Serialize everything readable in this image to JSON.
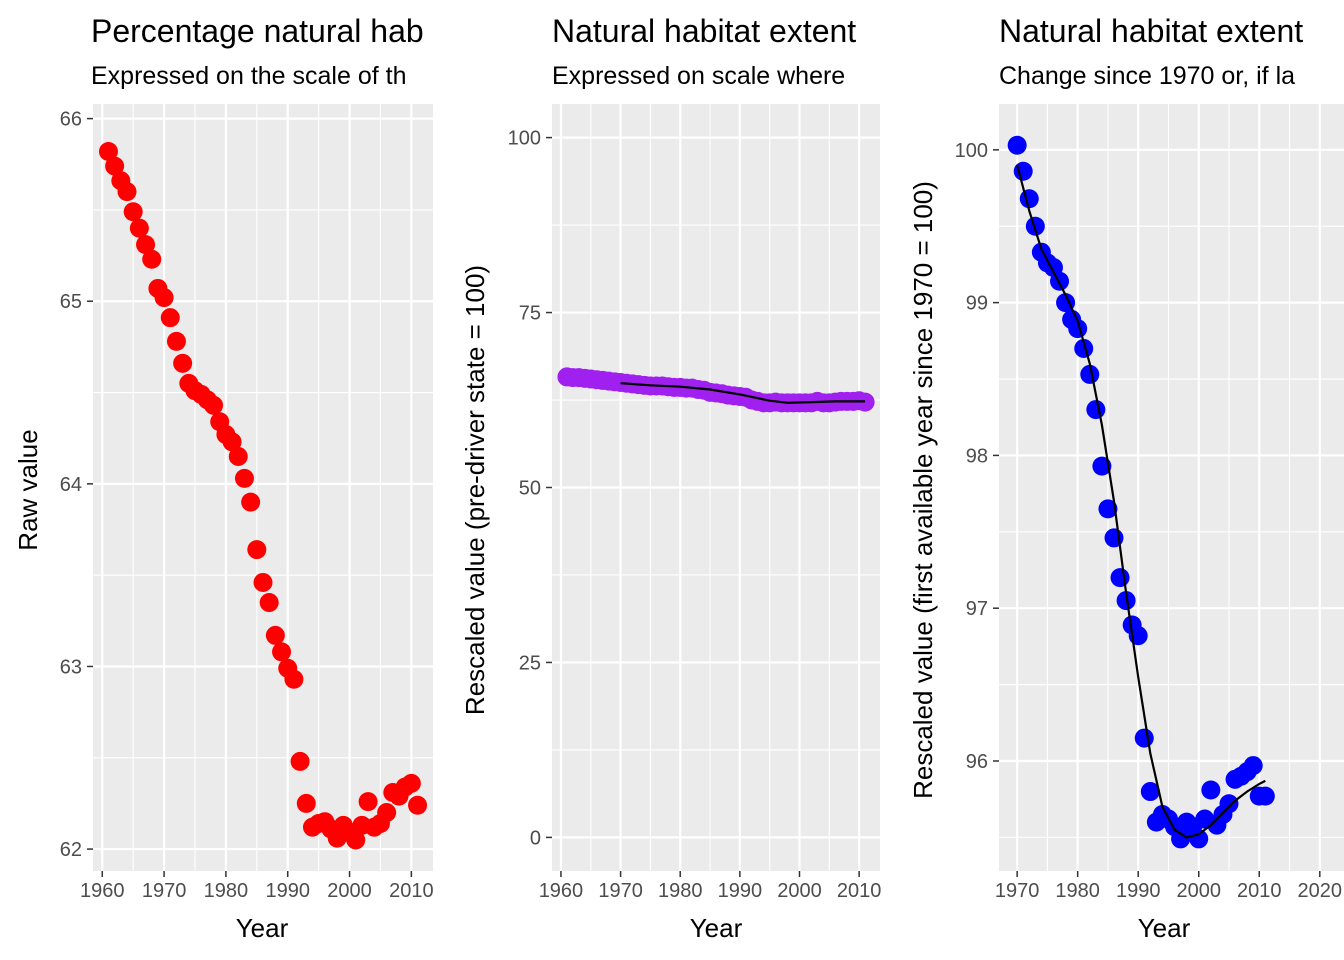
{
  "chart_data": [
    {
      "type": "scatter",
      "title": "Percentage natural hab",
      "subtitle": "Expressed on the scale of th",
      "xlabel": "Year",
      "ylabel": "Raw value",
      "xlim": [
        1958.5,
        2013.5
      ],
      "ylim": [
        61.88,
        66.08
      ],
      "x_ticks": [
        1960,
        1970,
        1980,
        1990,
        2000,
        2010
      ],
      "y_ticks": [
        62,
        63,
        64,
        65,
        66
      ],
      "grid": true,
      "point_color": "#ff0000",
      "series": [
        {
          "x": [
            1961,
            1962,
            1963,
            1964,
            1965,
            1966,
            1967,
            1968,
            1969,
            1970,
            1971,
            1972,
            1973,
            1974,
            1975,
            1976,
            1977,
            1978,
            1979,
            1980,
            1981,
            1982,
            1983,
            1984,
            1985,
            1986,
            1987,
            1988,
            1989,
            1990,
            1991,
            1992,
            1993,
            1994,
            1995,
            1996,
            1997,
            1998,
            1999,
            2000,
            2001,
            2002,
            2003,
            2004,
            2005,
            2006,
            2007,
            2008,
            2009,
            2010,
            2011
          ],
          "y": [
            65.82,
            65.74,
            65.66,
            65.6,
            65.49,
            65.4,
            65.31,
            65.23,
            65.07,
            65.02,
            64.91,
            64.78,
            64.66,
            64.55,
            64.51,
            64.49,
            64.46,
            64.43,
            64.34,
            64.27,
            64.23,
            64.15,
            64.03,
            63.9,
            63.64,
            63.46,
            63.35,
            63.17,
            63.08,
            62.99,
            62.93,
            62.48,
            62.25,
            62.12,
            62.14,
            62.15,
            62.11,
            62.06,
            62.13,
            62.09,
            62.05,
            62.13,
            62.26,
            62.12,
            62.14,
            62.2,
            62.31,
            62.29,
            62.34,
            62.36,
            62.24
          ]
        }
      ]
    },
    {
      "type": "scatter",
      "title": "Natural habitat extent",
      "subtitle": "Expressed on scale where",
      "xlabel": "Year",
      "ylabel": "Rescaled value (pre-driver state = 100)",
      "xlim": [
        1958.5,
        2013.5
      ],
      "ylim": [
        -4.8,
        104.8
      ],
      "x_ticks": [
        1960,
        1970,
        1980,
        1990,
        2000,
        2010
      ],
      "y_ticks": [
        0,
        25,
        50,
        75,
        100
      ],
      "grid": true,
      "point_color": "#a020f0",
      "trend_color": "#000000",
      "series": [
        {
          "x": [
            1961,
            1962,
            1963,
            1964,
            1965,
            1966,
            1967,
            1968,
            1969,
            1970,
            1971,
            1972,
            1973,
            1974,
            1975,
            1976,
            1977,
            1978,
            1979,
            1980,
            1981,
            1982,
            1983,
            1984,
            1985,
            1986,
            1987,
            1988,
            1989,
            1990,
            1991,
            1992,
            1993,
            1994,
            1995,
            1996,
            1997,
            1998,
            1999,
            2000,
            2001,
            2002,
            2003,
            2004,
            2005,
            2006,
            2007,
            2008,
            2009,
            2010,
            2011
          ],
          "y": [
            65.8,
            65.7,
            65.7,
            65.6,
            65.5,
            65.4,
            65.3,
            65.2,
            65.1,
            65.0,
            64.9,
            64.8,
            64.7,
            64.6,
            64.5,
            64.5,
            64.5,
            64.4,
            64.3,
            64.3,
            64.2,
            64.2,
            64.0,
            63.9,
            63.6,
            63.5,
            63.4,
            63.2,
            63.1,
            63.0,
            62.9,
            62.5,
            62.3,
            62.1,
            62.1,
            62.2,
            62.1,
            62.1,
            62.1,
            62.1,
            62.1,
            62.1,
            62.3,
            62.1,
            62.1,
            62.2,
            62.3,
            62.3,
            62.3,
            62.4,
            62.2
          ]
        }
      ],
      "trend": {
        "x": [
          1970,
          1975,
          1980,
          1985,
          1990,
          1995,
          1998,
          2002,
          2006,
          2011
        ],
        "y": [
          64.9,
          64.6,
          64.4,
          64.0,
          63.3,
          62.4,
          62.1,
          62.2,
          62.3,
          62.3
        ]
      }
    },
    {
      "type": "scatter",
      "title": "Natural habitat extent",
      "subtitle": "Change since 1970 or, if la",
      "xlabel": "Year",
      "ylabel": "Rescaled value (first available year since 1970 = 100)",
      "xlim": [
        1967,
        2024
      ],
      "ylim": [
        95.28,
        100.3
      ],
      "x_ticks": [
        1970,
        1980,
        1990,
        2000,
        2010,
        2020
      ],
      "y_ticks": [
        96,
        97,
        98,
        99,
        100
      ],
      "grid": true,
      "point_color": "#0000ff",
      "trend_color": "#000000",
      "series": [
        {
          "x": [
            1970,
            1971,
            1972,
            1973,
            1974,
            1975,
            1976,
            1977,
            1978,
            1979,
            1980,
            1981,
            1982,
            1983,
            1984,
            1985,
            1986,
            1987,
            1988,
            1989,
            1990,
            1991,
            1992,
            1993,
            1994,
            1995,
            1996,
            1997,
            1998,
            1999,
            2000,
            2001,
            2002,
            2003,
            2004,
            2005,
            2006,
            2007,
            2008,
            2009,
            2010,
            2011
          ],
          "y": [
            100.03,
            99.86,
            99.68,
            99.5,
            99.33,
            99.26,
            99.23,
            99.14,
            99.0,
            98.89,
            98.83,
            98.7,
            98.53,
            98.3,
            97.93,
            97.65,
            97.46,
            97.2,
            97.05,
            96.89,
            96.82,
            96.15,
            95.8,
            95.6,
            95.65,
            95.62,
            95.57,
            95.49,
            95.6,
            95.57,
            95.49,
            95.62,
            95.81,
            95.58,
            95.65,
            95.72,
            95.88,
            95.9,
            95.93,
            95.97,
            95.77,
            95.77
          ]
        }
      ],
      "trend": {
        "x": [
          1970,
          1972,
          1974,
          1976,
          1978,
          1980,
          1982,
          1984,
          1986,
          1988,
          1990,
          1992,
          1994,
          1996,
          1998,
          2000,
          2002,
          2004,
          2006,
          2008,
          2010,
          2011
        ],
        "y": [
          99.9,
          99.6,
          99.35,
          99.2,
          99.05,
          98.88,
          98.6,
          98.2,
          97.7,
          97.1,
          96.55,
          96.05,
          95.7,
          95.55,
          95.5,
          95.52,
          95.58,
          95.66,
          95.74,
          95.8,
          95.85,
          95.87
        ]
      }
    }
  ]
}
